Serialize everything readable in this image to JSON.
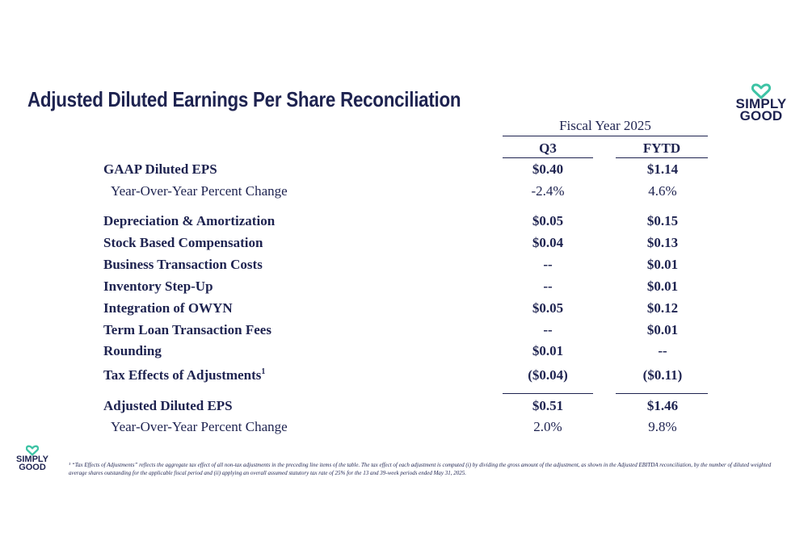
{
  "title": "Adjusted Diluted Earnings Per Share Reconciliation",
  "logo": {
    "line1": "SIMPLY",
    "line2": "GOOD",
    "heart_color": "#3ec3a5",
    "text_color": "#1e2350"
  },
  "table": {
    "group_header": "Fiscal Year 2025",
    "col1": "Q3",
    "col2": "FYTD",
    "rows": [
      {
        "label": "GAAP Diluted EPS",
        "q3": "$0.40",
        "fytd": "$1.14",
        "style": "bold"
      },
      {
        "label": "Year-Over-Year Percent Change",
        "q3": "-2.4%",
        "fytd": "4.6%",
        "style": "sub"
      },
      {
        "label": "Depreciation & Amortization",
        "q3": "$0.05",
        "fytd": "$0.15",
        "style": "bold"
      },
      {
        "label": "Stock Based Compensation",
        "q3": "$0.04",
        "fytd": "$0.13",
        "style": "bold"
      },
      {
        "label": "Business Transaction Costs",
        "q3": "--",
        "fytd": "$0.01",
        "style": "bold"
      },
      {
        "label": "Inventory Step-Up",
        "q3": "--",
        "fytd": "$0.01",
        "style": "bold"
      },
      {
        "label": "Integration of OWYN",
        "q3": "$0.05",
        "fytd": "$0.12",
        "style": "bold"
      },
      {
        "label": "Term Loan Transaction Fees",
        "q3": "--",
        "fytd": "$0.01",
        "style": "bold"
      },
      {
        "label": "Rounding",
        "q3": "$0.01",
        "fytd": "--",
        "style": "bold"
      },
      {
        "label": "Tax Effects of Adjustments",
        "footnote_mark": "1",
        "q3": "($0.04)",
        "fytd": "($0.11)",
        "style": "bold"
      },
      {
        "label": "Adjusted Diluted EPS",
        "q3": "$0.51",
        "fytd": "$1.46",
        "style": "bold"
      },
      {
        "label": "Year-Over-Year Percent Change",
        "q3": "2.0%",
        "fytd": "9.8%",
        "style": "sub"
      }
    ]
  },
  "footnote": "¹ “Tax Effects of Adjustments” reflects the aggregate tax effect of all non-tax adjustments in the preceding line items of the table. The tax effect of each adjustment is computed (i) by dividing the gross amount of the adjustment, as shown in the Adjusted EBITDA reconciliation, by the number of diluted weighted average shares outstanding for the applicable fiscal period and (ii) applying an overall assumed statutory tax rate of 25% for the 13 and 39-week periods ended May 31, 2025."
}
